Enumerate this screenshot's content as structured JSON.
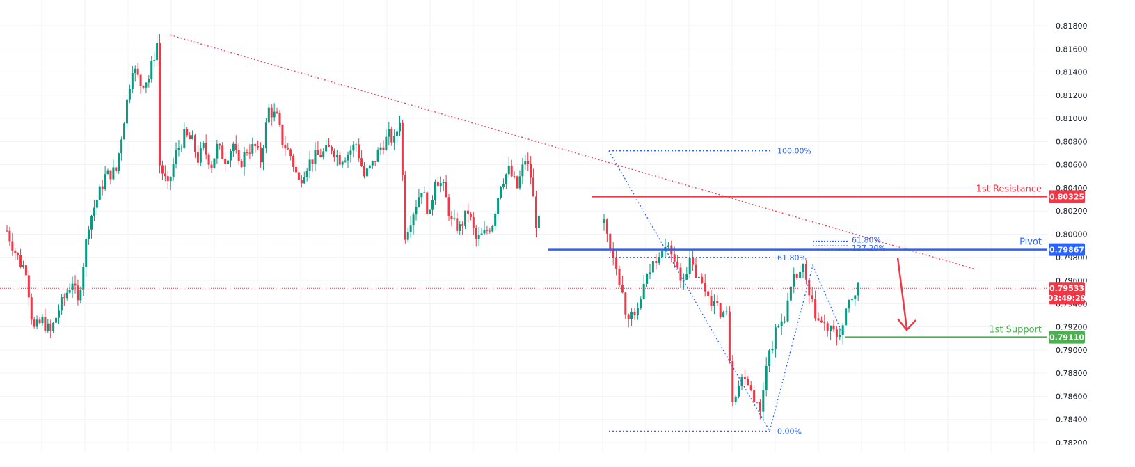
{
  "colors": {
    "up": "#089981",
    "down": "#f23645",
    "resistance": "#f23645",
    "pivot": "#2962ff",
    "support": "#4caf50",
    "trendline": "#f23645",
    "fib": "#2962ff",
    "grid": "#f0f3fa",
    "axis_text": "#131722"
  },
  "chart_data": {
    "type": "candlestick",
    "ylim": [
      0.782,
      0.819
    ],
    "y_ticks": [
      "0.81800",
      "0.81600",
      "0.81400",
      "0.81200",
      "0.81000",
      "0.80800",
      "0.80600",
      "0.80400",
      "0.80200",
      "0.80000",
      "0.79800",
      "0.79600",
      "0.79400",
      "0.79200",
      "0.79000",
      "0.78800",
      "0.78600",
      "0.78400",
      "0.78200"
    ],
    "grid": true,
    "bar_count": 200,
    "anchors": [
      [
        0,
        0.8003
      ],
      [
        3,
        0.7985
      ],
      [
        5,
        0.7975
      ],
      [
        7,
        0.797
      ],
      [
        9,
        0.793
      ],
      [
        10,
        0.7918
      ],
      [
        13,
        0.7925
      ],
      [
        16,
        0.7915
      ],
      [
        19,
        0.7935
      ],
      [
        22,
        0.795
      ],
      [
        24,
        0.796
      ],
      [
        26,
        0.794
      ],
      [
        27,
        0.7958
      ],
      [
        30,
        0.801
      ],
      [
        33,
        0.803
      ],
      [
        36,
        0.805
      ],
      [
        40,
        0.8055
      ],
      [
        43,
        0.81
      ],
      [
        46,
        0.8145
      ],
      [
        49,
        0.813
      ],
      [
        52,
        0.8135
      ],
      [
        55,
        0.8165
      ],
      [
        56,
        0.806
      ],
      [
        59,
        0.804
      ],
      [
        62,
        0.807
      ],
      [
        65,
        0.8085
      ],
      [
        68,
        0.808
      ],
      [
        70,
        0.8065
      ],
      [
        72,
        0.8075
      ],
      [
        75,
        0.806
      ],
      [
        77,
        0.8075
      ],
      [
        80,
        0.8065
      ],
      [
        83,
        0.8078
      ],
      [
        85,
        0.8058
      ],
      [
        88,
        0.8073
      ],
      [
        91,
        0.8075
      ],
      [
        93,
        0.8064
      ],
      [
        96,
        0.8108
      ],
      [
        99,
        0.81
      ],
      [
        101,
        0.808
      ],
      [
        104,
        0.8068
      ],
      [
        107,
        0.8045
      ],
      [
        110,
        0.806
      ],
      [
        113,
        0.8067
      ],
      [
        116,
        0.807
      ],
      [
        119,
        0.8075
      ],
      [
        122,
        0.8065
      ],
      [
        125,
        0.807
      ],
      [
        128,
        0.8078
      ],
      [
        131,
        0.805
      ],
      [
        134,
        0.806
      ],
      [
        137,
        0.8075
      ],
      [
        140,
        0.8085
      ],
      [
        142,
        0.808
      ],
      [
        144,
        0.81
      ],
      [
        146,
        0.8
      ],
      [
        149,
        0.802
      ],
      [
        152,
        0.804
      ],
      [
        155,
        0.8015
      ],
      [
        157,
        0.805
      ],
      [
        160,
        0.804
      ],
      [
        163,
        0.801
      ],
      [
        166,
        0.8005
      ],
      [
        169,
        0.802
      ],
      [
        172,
        0.7995
      ],
      [
        175,
        0.8
      ],
      [
        178,
        0.801
      ],
      [
        181,
        0.8045
      ],
      [
        184,
        0.8055
      ],
      [
        187,
        0.804
      ],
      [
        190,
        0.8065
      ],
      [
        192,
        0.805
      ],
      [
        194,
        0.801
      ]
    ],
    "anchors2": [
      [
        0,
        0.801
      ],
      [
        2,
        0.799
      ],
      [
        4,
        0.7975
      ],
      [
        7,
        0.7935
      ],
      [
        10,
        0.7925
      ],
      [
        13,
        0.7955
      ],
      [
        16,
        0.7975
      ],
      [
        19,
        0.799
      ],
      [
        22,
        0.7985
      ],
      [
        25,
        0.796
      ],
      [
        28,
        0.7975
      ],
      [
        31,
        0.796
      ],
      [
        34,
        0.7948
      ],
      [
        37,
        0.7935
      ],
      [
        40,
        0.793
      ],
      [
        42,
        0.786
      ],
      [
        44,
        0.787
      ],
      [
        46,
        0.788
      ],
      [
        49,
        0.786
      ],
      [
        51,
        0.7845
      ],
      [
        53,
        0.789
      ],
      [
        56,
        0.7915
      ],
      [
        59,
        0.793
      ],
      [
        62,
        0.796
      ],
      [
        65,
        0.797
      ],
      [
        67,
        0.7945
      ],
      [
        70,
        0.7925
      ],
      [
        73,
        0.7918
      ],
      [
        76,
        0.7912
      ],
      [
        78,
        0.792
      ],
      [
        80,
        0.794
      ],
      [
        83,
        0.7955
      ]
    ],
    "segments": {
      "first": {
        "from_bar": 0,
        "to_bar": 112
      },
      "second": {
        "from_bar": 113,
        "to_bar": 196
      }
    },
    "levels": [
      {
        "name": "1st Resistance",
        "price": 0.80325,
        "tag": "0.80325",
        "color": "#f23645"
      },
      {
        "name": "Pivot",
        "price": 0.79867,
        "tag": "0.79867",
        "color": "#2962ff"
      },
      {
        "name": "1st Support",
        "price": 0.7911,
        "tag": "0.79110",
        "color": "#4caf50"
      }
    ],
    "current_price": {
      "price": 0.79533,
      "tag": "0.79533",
      "countdown": "03:49:29",
      "color": "#f23645"
    },
    "fib_labels": [
      "100.00%",
      "61.80%",
      "0.00%",
      "61.80%",
      "127.20%"
    ],
    "trendline": {
      "from": [
        56,
        0.8172
      ],
      "to": [
        1400,
        0.797
      ]
    }
  }
}
